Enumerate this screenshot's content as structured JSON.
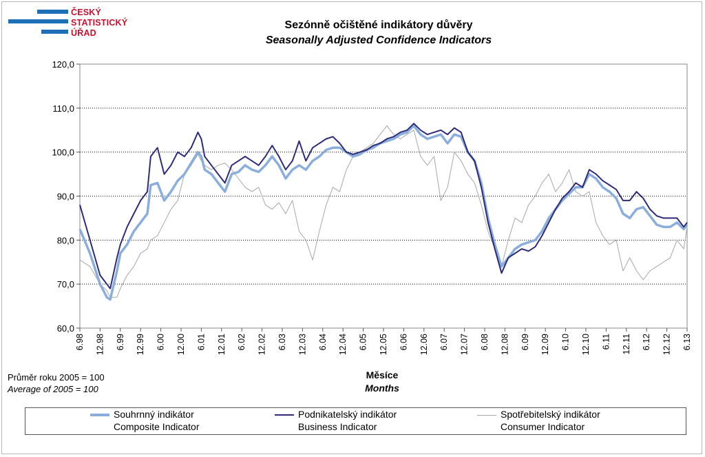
{
  "logo": {
    "lines": [
      "ČESKÝ",
      "STATISTICKÝ",
      "ÚŘAD"
    ]
  },
  "header": {
    "title_cz": "Sezónně očištěné indikátory důvěry",
    "title_en": "Seasonally Adjusted Confidence Indicators"
  },
  "notes": {
    "base_cz": "Průměr roku 2005 = 100",
    "base_en": "Average of 2005 = 100"
  },
  "axis": {
    "xlabel_cz": "Měsíce",
    "xlabel_en": "Months"
  },
  "legend": {
    "composite_cz": "Souhrnný indikátor",
    "composite_en": "Composite Indicator",
    "business_cz": "Podnikatelský indikátor",
    "business_en": "Business Indicator",
    "consumer_cz": "Spotřebitelský indikátor",
    "consumer_en": "Consumer Indicator"
  },
  "chart_data": {
    "type": "line",
    "title": "Sezónně očištěné indikátory důvěry / Seasonally Adjusted Confidence Indicators",
    "xlabel": "Měsíce / Months",
    "ylabel": "",
    "ylim": [
      60,
      120
    ],
    "yticks": [
      "60,0",
      "70,0",
      "80,0",
      "90,0",
      "100,0",
      "110,0",
      "120,0"
    ],
    "xticks": [
      "6.98",
      "12.98",
      "6.99",
      "12.99",
      "6.00",
      "12.00",
      "6.01",
      "12.01",
      "6.02",
      "12.02",
      "6.03",
      "12.03",
      "6.04",
      "12.04",
      "6.05",
      "12.05",
      "6.06",
      "12.06",
      "6.07",
      "12.07",
      "6.08",
      "12.08",
      "6.09",
      "12.09",
      "6.10",
      "12.10",
      "6.11",
      "12.11",
      "6.12",
      "12.12",
      "6.13"
    ],
    "x_start": "1998-06",
    "x_end": "2013-06",
    "grid": "horizontal dotted",
    "legend_position": "bottom",
    "colors": {
      "composite": "#8aaedc",
      "business": "#2e2a78",
      "consumer": "#a6a6a6"
    },
    "series": [
      {
        "name": "Souhrnný indikátor / Composite Indicator",
        "key": "composite",
        "points": [
          [
            "1998-06",
            82.5
          ],
          [
            "1998-09",
            77
          ],
          [
            "1998-12",
            70
          ],
          [
            "1999-02",
            67
          ],
          [
            "1999-03",
            66.5
          ],
          [
            "1999-05",
            73
          ],
          [
            "1999-06",
            77
          ],
          [
            "1999-08",
            79
          ],
          [
            "1999-10",
            82
          ],
          [
            "1999-12",
            84
          ],
          [
            "2000-02",
            86
          ],
          [
            "2000-03",
            92.5
          ],
          [
            "2000-05",
            93
          ],
          [
            "2000-07",
            89
          ],
          [
            "2000-09",
            91
          ],
          [
            "2000-11",
            93.5
          ],
          [
            "2001-01",
            95
          ],
          [
            "2001-03",
            97.5
          ],
          [
            "2001-05",
            100
          ],
          [
            "2001-06",
            99
          ],
          [
            "2001-07",
            96
          ],
          [
            "2001-09",
            95
          ],
          [
            "2001-11",
            93
          ],
          [
            "2002-01",
            91
          ],
          [
            "2002-03",
            95
          ],
          [
            "2002-05",
            95.5
          ],
          [
            "2002-07",
            97
          ],
          [
            "2002-09",
            96
          ],
          [
            "2002-11",
            95.5
          ],
          [
            "2003-01",
            97
          ],
          [
            "2003-03",
            99
          ],
          [
            "2003-05",
            97
          ],
          [
            "2003-07",
            94
          ],
          [
            "2003-09",
            96
          ],
          [
            "2003-11",
            97
          ],
          [
            "2004-01",
            96
          ],
          [
            "2004-03",
            98
          ],
          [
            "2004-05",
            99
          ],
          [
            "2004-07",
            100.5
          ],
          [
            "2004-09",
            101
          ],
          [
            "2004-11",
            101
          ],
          [
            "2005-01",
            100
          ],
          [
            "2005-03",
            99
          ],
          [
            "2005-05",
            99.5
          ],
          [
            "2005-07",
            100.5
          ],
          [
            "2005-09",
            101
          ],
          [
            "2005-11",
            102
          ],
          [
            "2006-01",
            102.5
          ],
          [
            "2006-03",
            103
          ],
          [
            "2006-05",
            104
          ],
          [
            "2006-07",
            104.5
          ],
          [
            "2006-09",
            106
          ],
          [
            "2006-11",
            104
          ],
          [
            "2007-01",
            103
          ],
          [
            "2007-03",
            103.5
          ],
          [
            "2007-05",
            104
          ],
          [
            "2007-07",
            102
          ],
          [
            "2007-09",
            104
          ],
          [
            "2007-11",
            103.5
          ],
          [
            "2008-01",
            100
          ],
          [
            "2008-03",
            98
          ],
          [
            "2008-05",
            93
          ],
          [
            "2008-07",
            85
          ],
          [
            "2008-09",
            79
          ],
          [
            "2008-11",
            74
          ],
          [
            "2009-01",
            76
          ],
          [
            "2009-03",
            78
          ],
          [
            "2009-05",
            79
          ],
          [
            "2009-07",
            79.5
          ],
          [
            "2009-09",
            80
          ],
          [
            "2009-11",
            82
          ],
          [
            "2010-01",
            85
          ],
          [
            "2010-03",
            87
          ],
          [
            "2010-05",
            89
          ],
          [
            "2010-07",
            90.5
          ],
          [
            "2010-09",
            92
          ],
          [
            "2010-11",
            92
          ],
          [
            "2011-01",
            95
          ],
          [
            "2011-03",
            94
          ],
          [
            "2011-05",
            92
          ],
          [
            "2011-07",
            91
          ],
          [
            "2011-09",
            89.5
          ],
          [
            "2011-11",
            86
          ],
          [
            "2012-01",
            85
          ],
          [
            "2012-03",
            87
          ],
          [
            "2012-05",
            87.5
          ],
          [
            "2012-07",
            85.5
          ],
          [
            "2012-09",
            83.5
          ],
          [
            "2012-11",
            83
          ],
          [
            "2013-01",
            83
          ],
          [
            "2013-03",
            84
          ],
          [
            "2013-05",
            82.5
          ],
          [
            "2013-06",
            83.5
          ]
        ]
      },
      {
        "name": "Podnikatelský indikátor / Business Indicator",
        "key": "business",
        "points": [
          [
            "1998-06",
            88
          ],
          [
            "1998-09",
            80
          ],
          [
            "1998-12",
            72
          ],
          [
            "1999-02",
            70
          ],
          [
            "1999-03",
            69
          ],
          [
            "1999-05",
            76
          ],
          [
            "1999-06",
            79
          ],
          [
            "1999-08",
            83
          ],
          [
            "1999-10",
            86
          ],
          [
            "1999-12",
            89
          ],
          [
            "2000-02",
            91
          ],
          [
            "2000-03",
            99
          ],
          [
            "2000-05",
            101
          ],
          [
            "2000-07",
            95
          ],
          [
            "2000-09",
            97
          ],
          [
            "2000-11",
            100
          ],
          [
            "2001-01",
            99
          ],
          [
            "2001-03",
            101
          ],
          [
            "2001-05",
            104.5
          ],
          [
            "2001-06",
            103
          ],
          [
            "2001-07",
            99
          ],
          [
            "2001-09",
            97
          ],
          [
            "2001-11",
            95
          ],
          [
            "2002-01",
            93
          ],
          [
            "2002-03",
            97
          ],
          [
            "2002-05",
            98
          ],
          [
            "2002-07",
            99
          ],
          [
            "2002-09",
            98
          ],
          [
            "2002-11",
            97
          ],
          [
            "2003-01",
            99
          ],
          [
            "2003-03",
            101.5
          ],
          [
            "2003-05",
            99
          ],
          [
            "2003-07",
            96
          ],
          [
            "2003-09",
            98
          ],
          [
            "2003-11",
            102.5
          ],
          [
            "2004-01",
            98
          ],
          [
            "2004-03",
            101
          ],
          [
            "2004-05",
            102
          ],
          [
            "2004-07",
            103
          ],
          [
            "2004-09",
            103.5
          ],
          [
            "2004-11",
            102
          ],
          [
            "2005-01",
            100
          ],
          [
            "2005-03",
            99.5
          ],
          [
            "2005-05",
            100
          ],
          [
            "2005-07",
            100.5
          ],
          [
            "2005-09",
            101.5
          ],
          [
            "2005-11",
            102
          ],
          [
            "2006-01",
            103
          ],
          [
            "2006-03",
            103.5
          ],
          [
            "2006-05",
            104.5
          ],
          [
            "2006-07",
            105
          ],
          [
            "2006-09",
            106.5
          ],
          [
            "2006-11",
            105
          ],
          [
            "2007-01",
            104
          ],
          [
            "2007-03",
            104.5
          ],
          [
            "2007-05",
            105
          ],
          [
            "2007-07",
            104
          ],
          [
            "2007-09",
            105.5
          ],
          [
            "2007-11",
            104.5
          ],
          [
            "2008-01",
            100
          ],
          [
            "2008-03",
            98
          ],
          [
            "2008-05",
            92
          ],
          [
            "2008-07",
            84
          ],
          [
            "2008-09",
            78
          ],
          [
            "2008-11",
            72.5
          ],
          [
            "2009-01",
            76
          ],
          [
            "2009-03",
            77
          ],
          [
            "2009-05",
            78
          ],
          [
            "2009-07",
            77.5
          ],
          [
            "2009-09",
            78.5
          ],
          [
            "2009-11",
            81
          ],
          [
            "2010-01",
            84
          ],
          [
            "2010-03",
            87
          ],
          [
            "2010-05",
            89.5
          ],
          [
            "2010-07",
            91
          ],
          [
            "2010-09",
            93
          ],
          [
            "2010-11",
            92
          ],
          [
            "2011-01",
            96
          ],
          [
            "2011-03",
            95
          ],
          [
            "2011-05",
            93.5
          ],
          [
            "2011-07",
            92.5
          ],
          [
            "2011-09",
            91.5
          ],
          [
            "2011-11",
            89
          ],
          [
            "2012-01",
            89
          ],
          [
            "2012-03",
            91
          ],
          [
            "2012-05",
            89.5
          ],
          [
            "2012-07",
            87
          ],
          [
            "2012-09",
            85.5
          ],
          [
            "2012-11",
            85
          ],
          [
            "2013-01",
            85
          ],
          [
            "2013-03",
            85
          ],
          [
            "2013-05",
            83
          ],
          [
            "2013-06",
            84
          ]
        ]
      },
      {
        "name": "Spotřebitelský indikátor / Consumer Indicator",
        "key": "consumer",
        "points": [
          [
            "1998-06",
            75.5
          ],
          [
            "1998-09",
            74
          ],
          [
            "1998-12",
            70
          ],
          [
            "1999-02",
            68.5
          ],
          [
            "1999-03",
            67
          ],
          [
            "1999-05",
            67
          ],
          [
            "1999-06",
            69
          ],
          [
            "1999-08",
            72
          ],
          [
            "1999-10",
            74
          ],
          [
            "1999-12",
            77
          ],
          [
            "2000-02",
            78
          ],
          [
            "2000-03",
            80
          ],
          [
            "2000-05",
            81
          ],
          [
            "2000-07",
            84
          ],
          [
            "2000-09",
            87
          ],
          [
            "2000-11",
            89
          ],
          [
            "2001-01",
            95
          ],
          [
            "2001-03",
            97
          ],
          [
            "2001-05",
            99.5
          ],
          [
            "2001-06",
            98
          ],
          [
            "2001-07",
            97
          ],
          [
            "2001-09",
            96
          ],
          [
            "2001-11",
            97
          ],
          [
            "2002-01",
            97.5
          ],
          [
            "2002-03",
            96
          ],
          [
            "2002-05",
            94
          ],
          [
            "2002-07",
            92
          ],
          [
            "2002-09",
            91
          ],
          [
            "2002-11",
            92
          ],
          [
            "2003-01",
            88
          ],
          [
            "2003-03",
            87
          ],
          [
            "2003-05",
            88.5
          ],
          [
            "2003-07",
            86
          ],
          [
            "2003-09",
            89
          ],
          [
            "2003-11",
            82
          ],
          [
            "2004-01",
            80
          ],
          [
            "2004-03",
            75.5
          ],
          [
            "2004-05",
            82
          ],
          [
            "2004-07",
            88
          ],
          [
            "2004-09",
            92
          ],
          [
            "2004-11",
            91
          ],
          [
            "2005-01",
            96
          ],
          [
            "2005-03",
            99
          ],
          [
            "2005-05",
            100
          ],
          [
            "2005-07",
            101
          ],
          [
            "2005-09",
            102
          ],
          [
            "2005-11",
            104
          ],
          [
            "2006-01",
            106
          ],
          [
            "2006-03",
            104
          ],
          [
            "2006-05",
            103
          ],
          [
            "2006-07",
            104
          ],
          [
            "2006-09",
            105
          ],
          [
            "2006-11",
            99
          ],
          [
            "2007-01",
            97
          ],
          [
            "2007-03",
            99
          ],
          [
            "2007-05",
            89
          ],
          [
            "2007-07",
            92
          ],
          [
            "2007-09",
            100
          ],
          [
            "2007-11",
            98
          ],
          [
            "2008-01",
            95
          ],
          [
            "2008-03",
            93
          ],
          [
            "2008-05",
            88
          ],
          [
            "2008-07",
            82
          ],
          [
            "2008-09",
            78
          ],
          [
            "2008-11",
            74
          ],
          [
            "2009-01",
            80
          ],
          [
            "2009-03",
            85
          ],
          [
            "2009-05",
            84
          ],
          [
            "2009-07",
            88
          ],
          [
            "2009-09",
            90
          ],
          [
            "2009-11",
            93
          ],
          [
            "2010-01",
            95
          ],
          [
            "2010-03",
            91
          ],
          [
            "2010-05",
            93
          ],
          [
            "2010-07",
            96
          ],
          [
            "2010-09",
            91
          ],
          [
            "2010-11",
            90
          ],
          [
            "2011-01",
            91
          ],
          [
            "2011-03",
            84
          ],
          [
            "2011-05",
            81
          ],
          [
            "2011-07",
            79
          ],
          [
            "2011-09",
            80
          ],
          [
            "2011-11",
            73
          ],
          [
            "2012-01",
            76
          ],
          [
            "2012-03",
            73
          ],
          [
            "2012-05",
            71
          ],
          [
            "2012-07",
            73
          ],
          [
            "2012-09",
            74
          ],
          [
            "2012-11",
            75
          ],
          [
            "2013-01",
            76
          ],
          [
            "2013-03",
            80
          ],
          [
            "2013-05",
            78
          ],
          [
            "2013-06",
            83
          ]
        ]
      }
    ]
  }
}
